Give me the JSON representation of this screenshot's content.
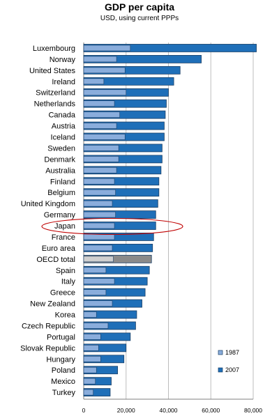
{
  "chart_data": {
    "type": "bar",
    "orientation": "horizontal",
    "title": "GDP per capita",
    "subtitle": "USD, using current PPPs",
    "xlabel": "",
    "ylabel": "",
    "xlim": [
      0,
      80000
    ],
    "xticks": [
      0,
      20000,
      40000,
      60000,
      80000
    ],
    "xtick_labels": [
      "0",
      "20,000",
      "40,000",
      "60,000",
      "80,000"
    ],
    "grid": true,
    "legend_position": "bottom-right",
    "highlighted_category": "Japan",
    "categories": [
      "Luxembourg",
      "Norway",
      "United States",
      "Ireland",
      "Switzerland",
      "Netherlands",
      "Canada",
      "Austria",
      "Iceland",
      "Sweden",
      "Denmark",
      "Australia",
      "Finland",
      "Belgium",
      "United Kingdom",
      "Germany",
      "Japan",
      "France",
      "Euro area",
      "OECD total",
      "Spain",
      "Italy",
      "Greece",
      "New Zealand",
      "Korea",
      "Czech Republic",
      "Portugal",
      "Slovak Republic",
      "Hungary",
      "Poland",
      "Mexico",
      "Turkey"
    ],
    "series": [
      {
        "name": "1987",
        "color": "#8aaddc",
        "values": [
          22000,
          15500,
          19500,
          9500,
          20000,
          14500,
          17000,
          15500,
          19500,
          16500,
          16500,
          15500,
          14500,
          15000,
          13500,
          15000,
          14500,
          14500,
          13500,
          14000,
          10500,
          14500,
          10500,
          13500,
          6000,
          11500,
          8000,
          7000,
          8000,
          6000,
          5500,
          4500
        ]
      },
      {
        "name": "2007",
        "color": "#1f6fb8",
        "values": [
          81500,
          55500,
          45500,
          42500,
          40000,
          39000,
          38500,
          38000,
          38000,
          37000,
          37000,
          36500,
          35500,
          35500,
          35000,
          34000,
          34000,
          33000,
          32500,
          32000,
          31000,
          30000,
          29000,
          27500,
          25000,
          24500,
          22000,
          20000,
          19000,
          16000,
          13000,
          12500
        ]
      }
    ],
    "special_bar_colors": {
      "OECD total": {
        "1987": "#cfcfcf",
        "2007": "#8a8a8a"
      }
    }
  }
}
